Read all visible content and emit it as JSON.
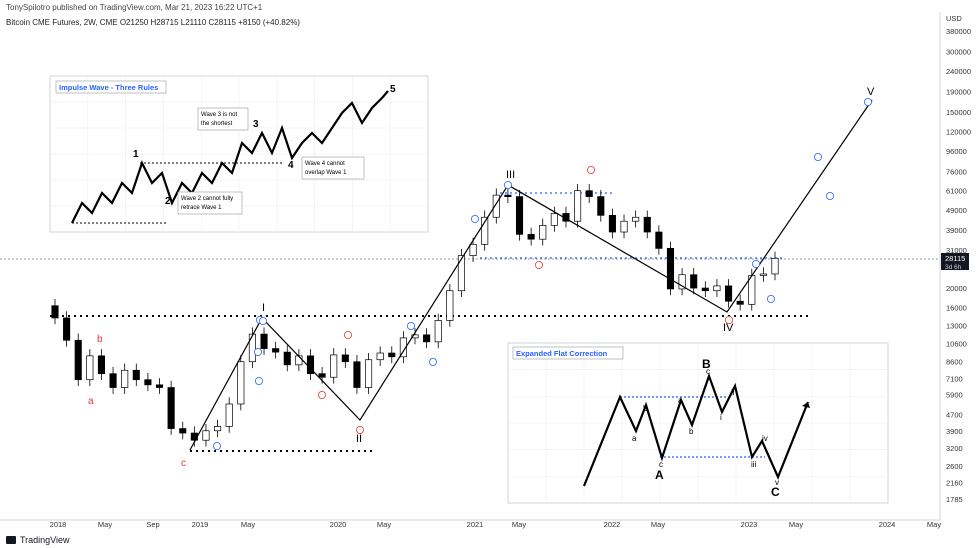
{
  "header": {
    "published": "TonySpilotro published on TradingView.com, Mar 21, 2023 16:22 UTC+1",
    "symbol": "Bitcoin CME Futures, 2W, CME",
    "ohlc": "O21250  H28715  L21110  C28115  +8150 (+40.82%)"
  },
  "footer": {
    "brand": "TradingView"
  },
  "price_axis": {
    "unit": "USD",
    "ticks": [
      380000,
      300000,
      240000,
      190000,
      150000,
      120000,
      96000,
      76000,
      61000,
      49000,
      39000,
      31000,
      20000,
      16000,
      13000,
      10600,
      8600,
      7100,
      5900,
      4700,
      3900,
      3200,
      2600,
      2160,
      1785
    ],
    "last_price_label": "28115",
    "countdown_label": "3d 6h"
  },
  "time_axis": {
    "ticks": [
      "2018",
      "May",
      "Sep",
      "2019",
      "May",
      "2020",
      "May",
      "2021",
      "May",
      "2022",
      "May",
      "2023",
      "May",
      "2024",
      "May"
    ]
  },
  "impulse_inset": {
    "title": "Impulse Wave - Three Rules",
    "rule_wave3": [
      "Wave 3 is not",
      "the shortest"
    ],
    "rule_wave4": [
      "Wave 4 cannot",
      "overlap Wave 1"
    ],
    "rule_wave2": [
      "Wave 2 cannot fully",
      "retrace Wave 1"
    ],
    "labels": [
      "1",
      "2",
      "3",
      "4",
      "5"
    ]
  },
  "flat_inset": {
    "title": "Expanded Flat Correction",
    "labels": [
      "A",
      "B",
      "C",
      "a",
      "b",
      "c",
      "i",
      "ii",
      "iii",
      "iv",
      "v"
    ]
  },
  "wave_labels": {
    "major": [
      "I",
      "II",
      "III",
      "IV",
      "V"
    ],
    "minor_red": [
      "a",
      "b",
      "c"
    ]
  },
  "colors": {
    "bullish_candle": "#ffffff",
    "bearish_candle": "#000000",
    "circled_blue": "#2962ff",
    "circled_red": "#e53935",
    "dotted_support": "#000000",
    "dotted_blue": "#2962ff"
  },
  "chart_data": {
    "type": "candlestick",
    "title": "Bitcoin CME Futures, 2W, CME",
    "y_scale": "log",
    "ylabel": "USD",
    "ylim": [
      1600,
      420000
    ],
    "x": [
      "2018-01",
      "2018-02",
      "2018-03",
      "2018-04",
      "2018-05",
      "2018-06",
      "2018-07",
      "2018-08",
      "2018-09",
      "2018-10",
      "2018-11",
      "2018-12",
      "2019-01",
      "2019-02",
      "2019-03",
      "2019-04",
      "2019-05",
      "2019-06",
      "2019-07",
      "2019-08",
      "2019-09",
      "2019-10",
      "2019-11",
      "2019-12",
      "2020-01",
      "2020-02",
      "2020-03",
      "2020-04",
      "2020-05",
      "2020-06",
      "2020-07",
      "2020-08",
      "2020-09",
      "2020-10",
      "2020-11",
      "2020-12",
      "2021-01",
      "2021-02",
      "2021-03",
      "2021-04",
      "2021-05",
      "2021-06",
      "2021-07",
      "2021-08",
      "2021-09",
      "2021-10",
      "2021-11",
      "2021-12",
      "2022-01",
      "2022-02",
      "2022-03",
      "2022-04",
      "2022-05",
      "2022-06",
      "2022-07",
      "2022-08",
      "2022-09",
      "2022-10",
      "2022-11",
      "2022-12",
      "2023-01",
      "2023-02",
      "2023-03"
    ],
    "close": [
      14200,
      11000,
      7000,
      9200,
      7500,
      6400,
      7800,
      7000,
      6600,
      6400,
      4000,
      3800,
      3500,
      3900,
      4100,
      5300,
      8600,
      11800,
      10000,
      9600,
      8300,
      9200,
      7500,
      7200,
      9300,
      8600,
      6400,
      8800,
      9500,
      9100,
      11300,
      11700,
      10800,
      13800,
      19400,
      29000,
      33000,
      45000,
      58000,
      57000,
      37000,
      35000,
      41000,
      47000,
      43000,
      61000,
      57000,
      46000,
      38000,
      43000,
      45000,
      38000,
      31500,
      19800,
      23300,
      20000,
      19400,
      20500,
      17200,
      16600,
      23100,
      23500,
      28115
    ],
    "series_last": {
      "open": 21250,
      "high": 28715,
      "low": 21110,
      "close": 28115,
      "change": "+8150 (+40.82%)"
    },
    "projection": {
      "target_label": "V",
      "target_price": 175000,
      "target_date": "2023-12"
    }
  }
}
